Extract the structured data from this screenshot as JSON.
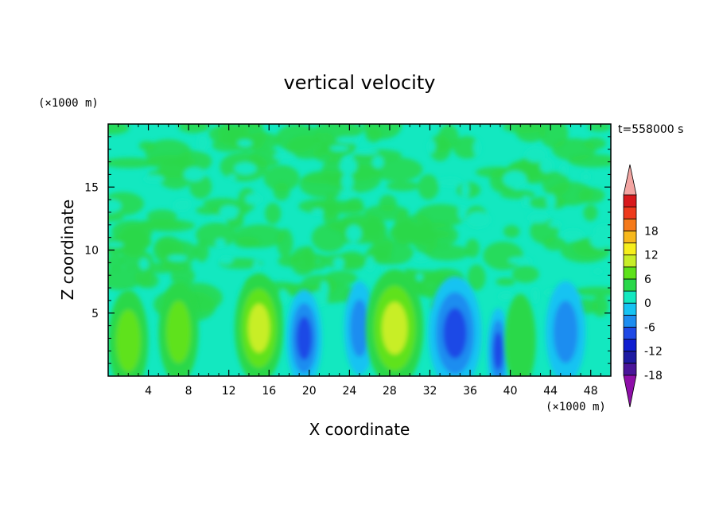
{
  "chart_data": {
    "type": "heatmap",
    "title": "vertical velocity",
    "xlabel": "X coordinate",
    "ylabel": "Z coordinate",
    "x_unit": "(×1000 m)",
    "y_unit": "(×1000 m)",
    "time_label": "t=558000 s",
    "xlim": [
      0,
      50
    ],
    "ylim": [
      0,
      20
    ],
    "x_ticks": [
      "4",
      "8",
      "12",
      "16",
      "20",
      "24",
      "28",
      "32",
      "36",
      "40",
      "44",
      "48"
    ],
    "y_ticks": [
      "5",
      "10",
      "15"
    ],
    "colorbar": {
      "tick_labels": [
        "18",
        "12",
        "6",
        "0",
        "-6",
        "-12",
        "-18"
      ],
      "levels_low_to_high": [
        -21,
        -18,
        -15,
        -12,
        -9,
        -6,
        -3,
        0,
        3,
        6,
        9,
        12,
        15,
        18,
        21
      ],
      "colors_low_to_high": [
        "#8e0fa8",
        "#4a1599",
        "#1e1ba2",
        "#101ed0",
        "#1f49e6",
        "#1d8df0",
        "#16c3f2",
        "#13e8c0",
        "#2ad84a",
        "#5ee21a",
        "#c8ee28",
        "#f6ee1c",
        "#f7b81c",
        "#f57a1a",
        "#ee3a1c",
        "#d8191c",
        "#f3a5a2"
      ]
    },
    "features": [
      {
        "x": 2,
        "z": 2.8,
        "w": 0.9,
        "kind": "updraft",
        "peak": 7
      },
      {
        "x": 7,
        "z": 3.5,
        "w": 0.9,
        "kind": "updraft",
        "peak": 7
      },
      {
        "x": 15,
        "z": 3.8,
        "w": 1.1,
        "kind": "updraft",
        "peak": 11
      },
      {
        "x": 19.5,
        "z": 3.0,
        "w": 0.8,
        "kind": "downdraft",
        "peak": -9
      },
      {
        "x": 25,
        "z": 3.8,
        "w": 0.7,
        "kind": "downdraft",
        "peak": -8
      },
      {
        "x": 28.5,
        "z": 3.8,
        "w": 1.3,
        "kind": "updraft",
        "peak": 9
      },
      {
        "x": 34.5,
        "z": 3.4,
        "w": 1.2,
        "kind": "downdraft",
        "peak": -11
      },
      {
        "x": 38.8,
        "z": 2.0,
        "w": 0.5,
        "kind": "downdraft",
        "peak": -9
      },
      {
        "x": 41,
        "z": 2.8,
        "w": 0.7,
        "kind": "updraft",
        "peak": 4
      },
      {
        "x": 45.5,
        "z": 3.5,
        "w": 0.9,
        "kind": "downdraft",
        "peak": -7
      }
    ]
  }
}
